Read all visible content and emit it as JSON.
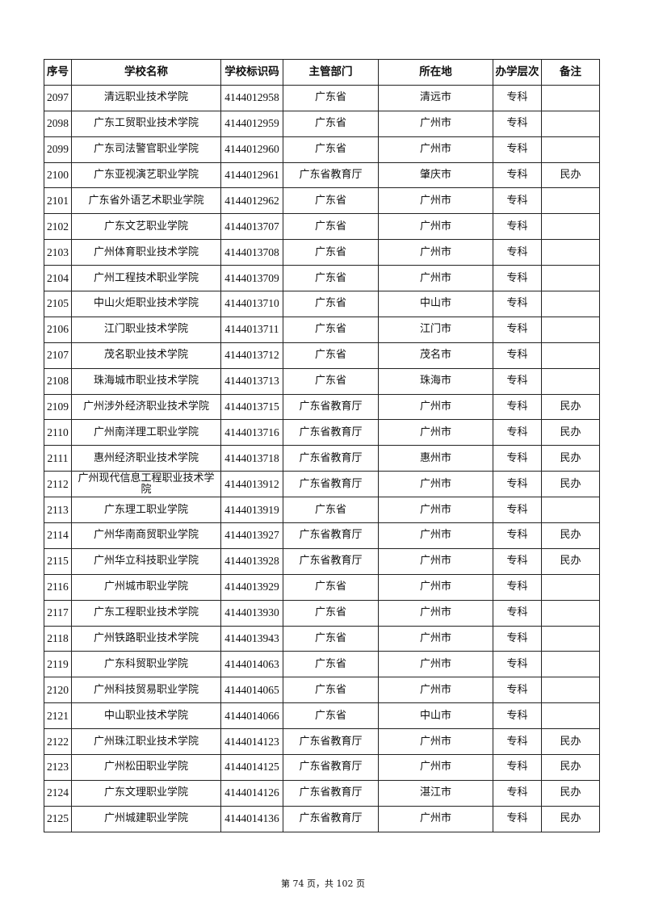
{
  "table": {
    "headers": [
      "序号",
      "学校名称",
      "学校标识码",
      "主管部门",
      "所在地",
      "办学层次",
      "备注"
    ],
    "rows": [
      [
        "2097",
        "清远职业技术学院",
        "4144012958",
        "广东省",
        "清远市",
        "专科",
        ""
      ],
      [
        "2098",
        "广东工贸职业技术学院",
        "4144012959",
        "广东省",
        "广州市",
        "专科",
        ""
      ],
      [
        "2099",
        "广东司法警官职业学院",
        "4144012960",
        "广东省",
        "广州市",
        "专科",
        ""
      ],
      [
        "2100",
        "广东亚视演艺职业学院",
        "4144012961",
        "广东省教育厅",
        "肇庆市",
        "专科",
        "民办"
      ],
      [
        "2101",
        "广东省外语艺术职业学院",
        "4144012962",
        "广东省",
        "广州市",
        "专科",
        ""
      ],
      [
        "2102",
        "广东文艺职业学院",
        "4144013707",
        "广东省",
        "广州市",
        "专科",
        ""
      ],
      [
        "2103",
        "广州体育职业技术学院",
        "4144013708",
        "广东省",
        "广州市",
        "专科",
        ""
      ],
      [
        "2104",
        "广州工程技术职业学院",
        "4144013709",
        "广东省",
        "广州市",
        "专科",
        ""
      ],
      [
        "2105",
        "中山火炬职业技术学院",
        "4144013710",
        "广东省",
        "中山市",
        "专科",
        ""
      ],
      [
        "2106",
        "江门职业技术学院",
        "4144013711",
        "广东省",
        "江门市",
        "专科",
        ""
      ],
      [
        "2107",
        "茂名职业技术学院",
        "4144013712",
        "广东省",
        "茂名市",
        "专科",
        ""
      ],
      [
        "2108",
        "珠海城市职业技术学院",
        "4144013713",
        "广东省",
        "珠海市",
        "专科",
        ""
      ],
      [
        "2109",
        "广州涉外经济职业技术学院",
        "4144013715",
        "广东省教育厅",
        "广州市",
        "专科",
        "民办"
      ],
      [
        "2110",
        "广州南洋理工职业学院",
        "4144013716",
        "广东省教育厅",
        "广州市",
        "专科",
        "民办"
      ],
      [
        "2111",
        "惠州经济职业技术学院",
        "4144013718",
        "广东省教育厅",
        "惠州市",
        "专科",
        "民办"
      ],
      [
        "2112",
        "广州现代信息工程职业技术学院",
        "4144013912",
        "广东省教育厅",
        "广州市",
        "专科",
        "民办"
      ],
      [
        "2113",
        "广东理工职业学院",
        "4144013919",
        "广东省",
        "广州市",
        "专科",
        ""
      ],
      [
        "2114",
        "广州华南商贸职业学院",
        "4144013927",
        "广东省教育厅",
        "广州市",
        "专科",
        "民办"
      ],
      [
        "2115",
        "广州华立科技职业学院",
        "4144013928",
        "广东省教育厅",
        "广州市",
        "专科",
        "民办"
      ],
      [
        "2116",
        "广州城市职业学院",
        "4144013929",
        "广东省",
        "广州市",
        "专科",
        ""
      ],
      [
        "2117",
        "广东工程职业技术学院",
        "4144013930",
        "广东省",
        "广州市",
        "专科",
        ""
      ],
      [
        "2118",
        "广州铁路职业技术学院",
        "4144013943",
        "广东省",
        "广州市",
        "专科",
        ""
      ],
      [
        "2119",
        "广东科贸职业学院",
        "4144014063",
        "广东省",
        "广州市",
        "专科",
        ""
      ],
      [
        "2120",
        "广州科技贸易职业学院",
        "4144014065",
        "广东省",
        "广州市",
        "专科",
        ""
      ],
      [
        "2121",
        "中山职业技术学院",
        "4144014066",
        "广东省",
        "中山市",
        "专科",
        ""
      ],
      [
        "2122",
        "广州珠江职业技术学院",
        "4144014123",
        "广东省教育厅",
        "广州市",
        "专科",
        "民办"
      ],
      [
        "2123",
        "广州松田职业学院",
        "4144014125",
        "广东省教育厅",
        "广州市",
        "专科",
        "民办"
      ],
      [
        "2124",
        "广东文理职业学院",
        "4144014126",
        "广东省教育厅",
        "湛江市",
        "专科",
        "民办"
      ],
      [
        "2125",
        "广州城建职业学院",
        "4144014136",
        "广东省教育厅",
        "广州市",
        "专科",
        "民办"
      ]
    ]
  },
  "footer": {
    "page_label": "第 74 页，共 102 页"
  }
}
